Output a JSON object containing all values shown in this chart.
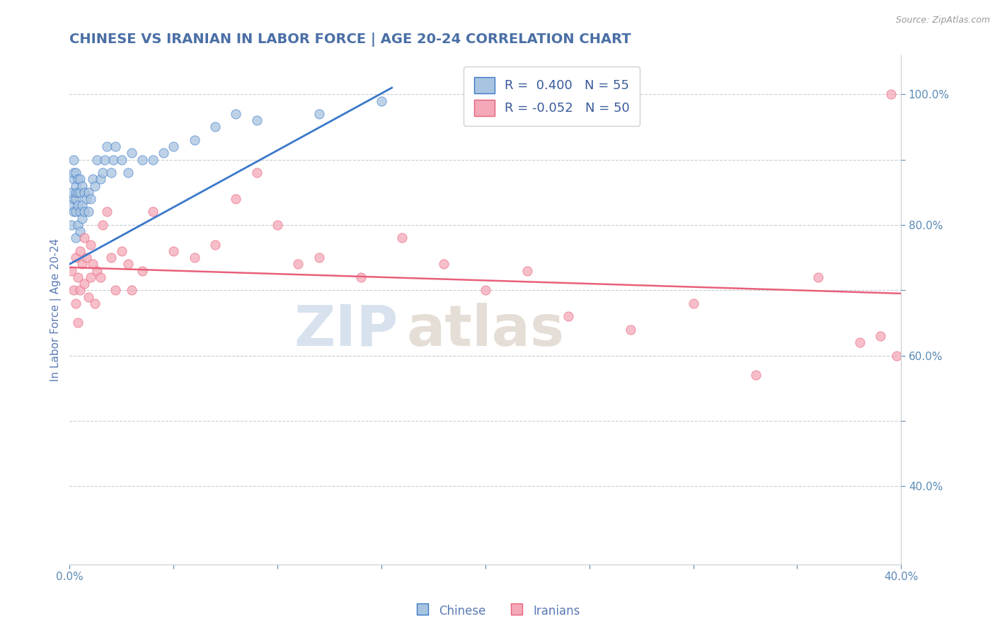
{
  "title": "CHINESE VS IRANIAN IN LABOR FORCE | AGE 20-24 CORRELATION CHART",
  "source_text": "Source: ZipAtlas.com",
  "ylabel": "In Labor Force | Age 20-24",
  "xlim": [
    0.0,
    0.4
  ],
  "ylim": [
    0.28,
    1.06
  ],
  "xticks": [
    0.0,
    0.05,
    0.1,
    0.15,
    0.2,
    0.25,
    0.3,
    0.35,
    0.4
  ],
  "yticks_right": [
    0.4,
    0.5,
    0.6,
    0.7,
    0.8,
    0.9,
    1.0
  ],
  "ytick_labels_right": [
    "40.0%",
    "",
    "60.0%",
    "",
    "80.0%",
    "",
    "100.0%"
  ],
  "legend_r_chinese": "0.400",
  "legend_n_chinese": "55",
  "legend_r_iranian": "-0.052",
  "legend_n_iranian": "50",
  "chinese_color": "#a8c4e0",
  "iranian_color": "#f4a8b8",
  "trend_chinese_color": "#3a78c9",
  "trend_iranian_color": "#e8607a",
  "dashed_line_color": "#c0c8d0",
  "watermark_zip_color": "#bdd0e4",
  "watermark_atlas_color": "#d4c8bc",
  "background_color": "#ffffff",
  "title_color": "#4a6fa5",
  "title_fontsize": 14,
  "axis_label_color": "#5a7ab5",
  "tick_color": "#5a8ab5",
  "legend_color": "#3a5a9a",
  "chinese_x": [
    0.001,
    0.001,
    0.001,
    0.002,
    0.002,
    0.002,
    0.002,
    0.002,
    0.003,
    0.003,
    0.003,
    0.003,
    0.003,
    0.003,
    0.004,
    0.004,
    0.004,
    0.004,
    0.005,
    0.005,
    0.005,
    0.005,
    0.006,
    0.006,
    0.006,
    0.007,
    0.007,
    0.008,
    0.009,
    0.009,
    0.01,
    0.011,
    0.012,
    0.013,
    0.015,
    0.016,
    0.017,
    0.018,
    0.02,
    0.021,
    0.022,
    0.025,
    0.028,
    0.03,
    0.035,
    0.04,
    0.045,
    0.05,
    0.06,
    0.07,
    0.08,
    0.09,
    0.12,
    0.15,
    0.2
  ],
  "chinese_y": [
    0.8,
    0.83,
    0.85,
    0.82,
    0.84,
    0.87,
    0.88,
    0.9,
    0.78,
    0.82,
    0.84,
    0.85,
    0.86,
    0.88,
    0.8,
    0.83,
    0.85,
    0.87,
    0.79,
    0.82,
    0.85,
    0.87,
    0.81,
    0.83,
    0.86,
    0.82,
    0.85,
    0.84,
    0.82,
    0.85,
    0.84,
    0.87,
    0.86,
    0.9,
    0.87,
    0.88,
    0.9,
    0.92,
    0.88,
    0.9,
    0.92,
    0.9,
    0.88,
    0.91,
    0.9,
    0.9,
    0.91,
    0.92,
    0.93,
    0.95,
    0.97,
    0.96,
    0.97,
    0.99,
    0.99
  ],
  "iranian_x": [
    0.001,
    0.002,
    0.003,
    0.003,
    0.004,
    0.004,
    0.005,
    0.005,
    0.006,
    0.007,
    0.007,
    0.008,
    0.009,
    0.01,
    0.01,
    0.011,
    0.012,
    0.013,
    0.015,
    0.016,
    0.018,
    0.02,
    0.022,
    0.025,
    0.028,
    0.03,
    0.035,
    0.04,
    0.05,
    0.06,
    0.07,
    0.08,
    0.09,
    0.1,
    0.11,
    0.12,
    0.14,
    0.16,
    0.18,
    0.2,
    0.22,
    0.24,
    0.27,
    0.3,
    0.33,
    0.36,
    0.38,
    0.39,
    0.395,
    0.398
  ],
  "iranian_y": [
    0.73,
    0.7,
    0.75,
    0.68,
    0.72,
    0.65,
    0.76,
    0.7,
    0.74,
    0.71,
    0.78,
    0.75,
    0.69,
    0.77,
    0.72,
    0.74,
    0.68,
    0.73,
    0.72,
    0.8,
    0.82,
    0.75,
    0.7,
    0.76,
    0.74,
    0.7,
    0.73,
    0.82,
    0.76,
    0.75,
    0.77,
    0.84,
    0.88,
    0.8,
    0.74,
    0.75,
    0.72,
    0.78,
    0.74,
    0.7,
    0.73,
    0.66,
    0.64,
    0.68,
    0.57,
    0.72,
    0.62,
    0.63,
    1.0,
    0.6
  ],
  "chinese_trend_x0": 0.0,
  "chinese_trend_y0": 0.74,
  "chinese_trend_x1": 0.155,
  "chinese_trend_y1": 1.01,
  "iranian_trend_x0": 0.0,
  "iranian_trend_y0": 0.735,
  "iranian_trend_x1": 0.4,
  "iranian_trend_y1": 0.695
}
